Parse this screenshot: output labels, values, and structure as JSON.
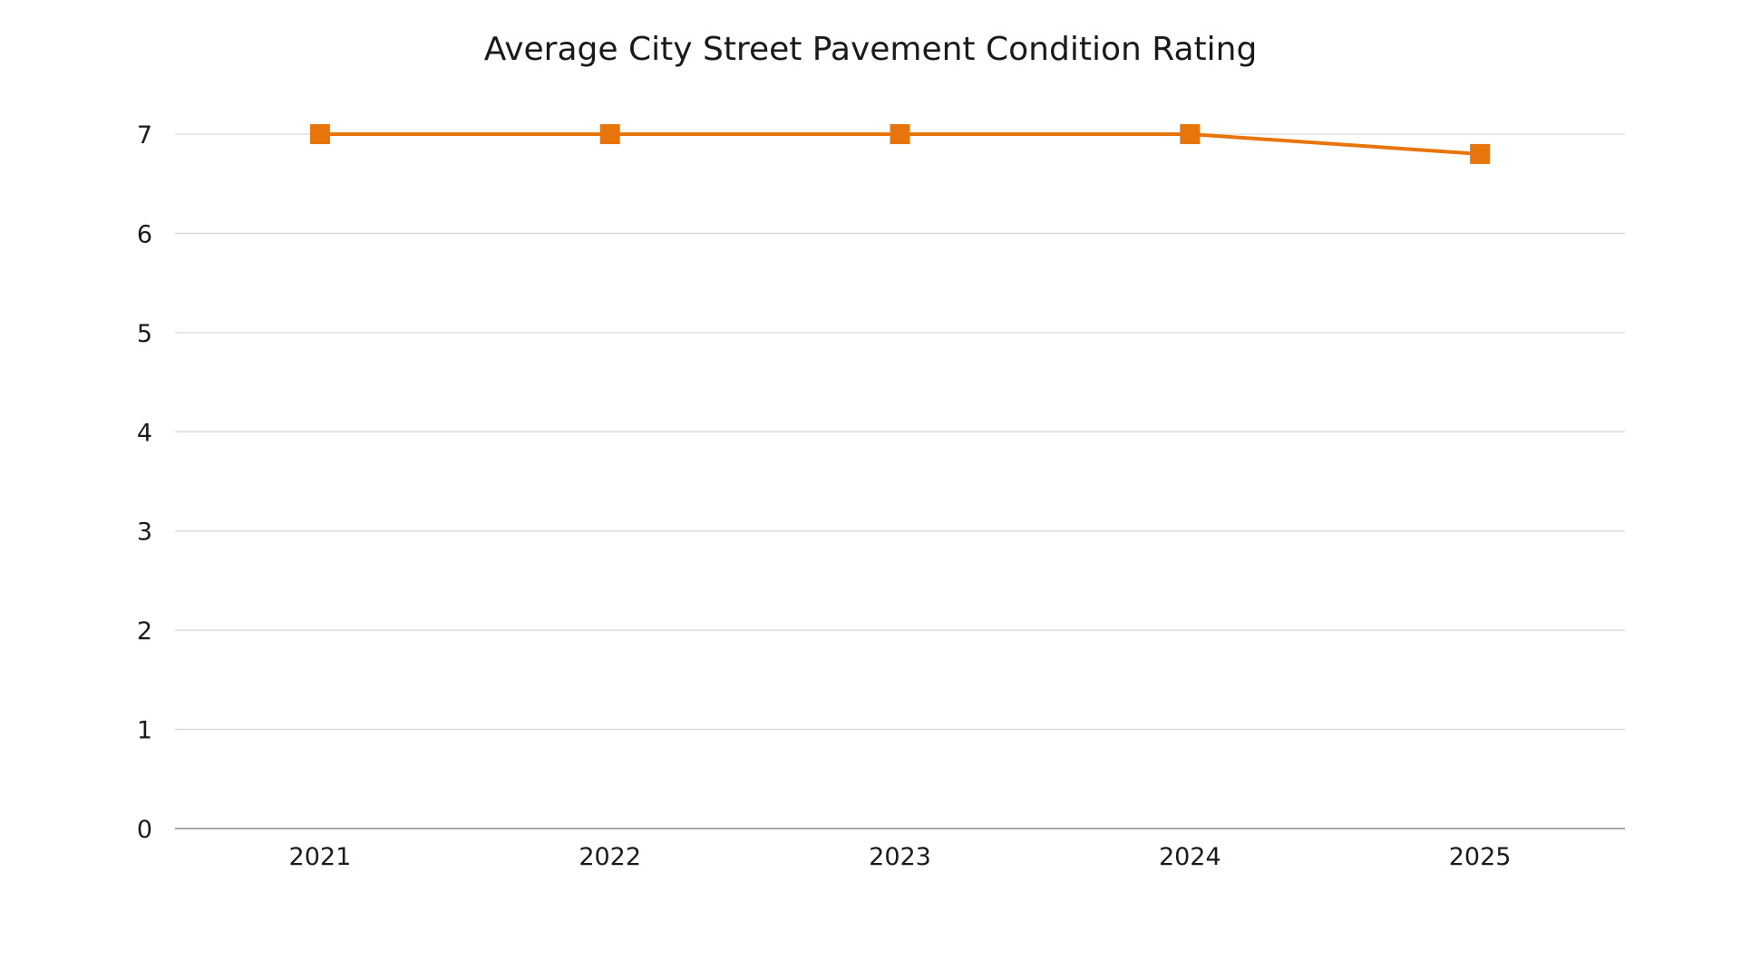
{
  "chart_data": {
    "type": "line",
    "title": "Average City Street Pavement Condition Rating",
    "xlabel": "",
    "ylabel": "",
    "categories": [
      "2021",
      "2022",
      "2023",
      "2024",
      "2025"
    ],
    "series": [
      {
        "values": [
          7.0,
          7.0,
          7.0,
          7.0,
          6.8
        ],
        "color": "#E8740C",
        "marker": "square"
      }
    ],
    "ylim": [
      0,
      7
    ],
    "yticks": [
      0,
      1,
      2,
      3,
      4,
      5,
      6,
      7
    ],
    "grid": true,
    "legend": "none"
  }
}
